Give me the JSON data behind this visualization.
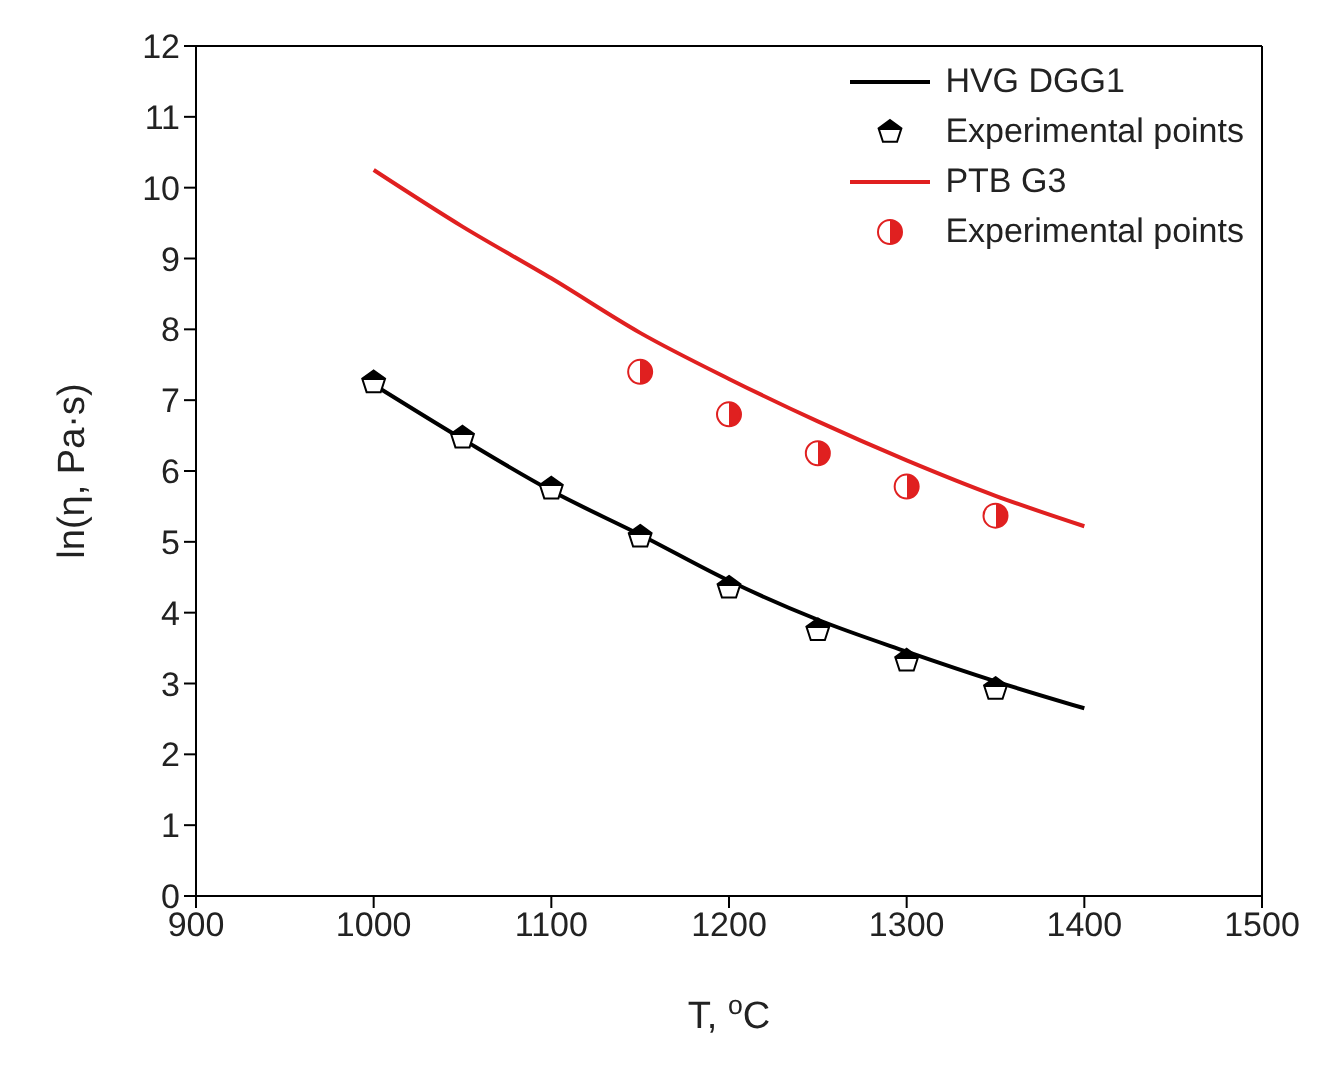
{
  "chart_data": {
    "type": "line",
    "xlabel": "T, $^{o}$C",
    "ylabel": "ln(η, Pa·s)",
    "xlim": [
      900,
      1500
    ],
    "xticks": [
      900,
      1000,
      1100,
      1200,
      1300,
      1400,
      1500
    ],
    "ylim": [
      0,
      12
    ],
    "yticks": [
      0,
      1,
      2,
      3,
      4,
      5,
      6,
      7,
      8,
      9,
      10,
      11,
      12
    ],
    "legend": "top right",
    "series": [
      {
        "name": "HVG DGG1",
        "color": "#000000",
        "marker": "none",
        "x": [
          1000,
          1050,
          1100,
          1150,
          1200,
          1250,
          1300,
          1350,
          1400
        ],
        "values": [
          7.22,
          6.45,
          5.72,
          5.1,
          4.45,
          3.9,
          3.45,
          3.03,
          2.65
        ]
      },
      {
        "name": "Experimental points",
        "type": "scatter",
        "color": "#000000",
        "x": [
          1000,
          1050,
          1100,
          1150,
          1200,
          1250,
          1300,
          1350
        ],
        "values": [
          7.25,
          6.47,
          5.75,
          5.07,
          4.35,
          3.75,
          3.32,
          2.92
        ]
      },
      {
        "name": "PTB G3",
        "color": "#e02020",
        "marker": "none",
        "x": [
          1000,
          1050,
          1100,
          1150,
          1200,
          1250,
          1300,
          1350,
          1400
        ],
        "values": [
          10.25,
          9.45,
          8.72,
          7.95,
          7.3,
          6.7,
          6.15,
          5.65,
          5.22
        ]
      },
      {
        "name": "Experimental points",
        "type": "scatter",
        "color": "#e02020",
        "marker": "circle",
        "x": [
          1150,
          1200,
          1250,
          1300,
          1350
        ],
        "values": [
          7.4,
          6.8,
          6.25,
          5.78,
          5.37
        ]
      }
    ]
  }
}
